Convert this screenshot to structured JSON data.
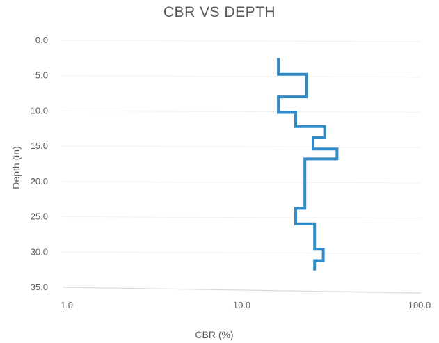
{
  "chart_data": {
    "type": "line",
    "title": "CBR VS DEPTH",
    "xlabel": "CBR (%)",
    "ylabel": "Depth (in)",
    "x_scale": "log",
    "xlim": [
      1,
      100
    ],
    "ylim": [
      0,
      35
    ],
    "y_inverted": true,
    "x_tick_labels": [
      "1.0",
      "10.0",
      "100.0"
    ],
    "x_ticks": [
      1,
      10,
      100
    ],
    "y_tick_labels": [
      "0.0",
      "5.0",
      "10.0",
      "15.0",
      "20.0",
      "25.0",
      "30.0",
      "35.0"
    ],
    "y_ticks": [
      0,
      5,
      10,
      15,
      20,
      25,
      30,
      35
    ],
    "grid": true,
    "legend": "none",
    "series": [
      {
        "color": "#2E8BC8",
        "points": [
          {
            "x": 16,
            "y": 2.5
          },
          {
            "x": 16,
            "y": 4.8
          },
          {
            "x": 23,
            "y": 4.8
          },
          {
            "x": 23,
            "y": 8.0
          },
          {
            "x": 16,
            "y": 8.0
          },
          {
            "x": 16,
            "y": 10.2
          },
          {
            "x": 20,
            "y": 10.2
          },
          {
            "x": 20,
            "y": 12.2
          },
          {
            "x": 29,
            "y": 12.2
          },
          {
            "x": 29,
            "y": 13.8
          },
          {
            "x": 25,
            "y": 13.8
          },
          {
            "x": 25,
            "y": 15.4
          },
          {
            "x": 34,
            "y": 15.4
          },
          {
            "x": 34,
            "y": 16.8
          },
          {
            "x": 22.5,
            "y": 16.8
          },
          {
            "x": 22.5,
            "y": 23.8
          },
          {
            "x": 20,
            "y": 23.8
          },
          {
            "x": 20,
            "y": 26.0
          },
          {
            "x": 25.5,
            "y": 26.0
          },
          {
            "x": 25.5,
            "y": 29.6
          },
          {
            "x": 28.5,
            "y": 29.6
          },
          {
            "x": 28.5,
            "y": 31.2
          },
          {
            "x": 25.5,
            "y": 31.2
          },
          {
            "x": 25.5,
            "y": 32.6
          }
        ]
      }
    ]
  }
}
